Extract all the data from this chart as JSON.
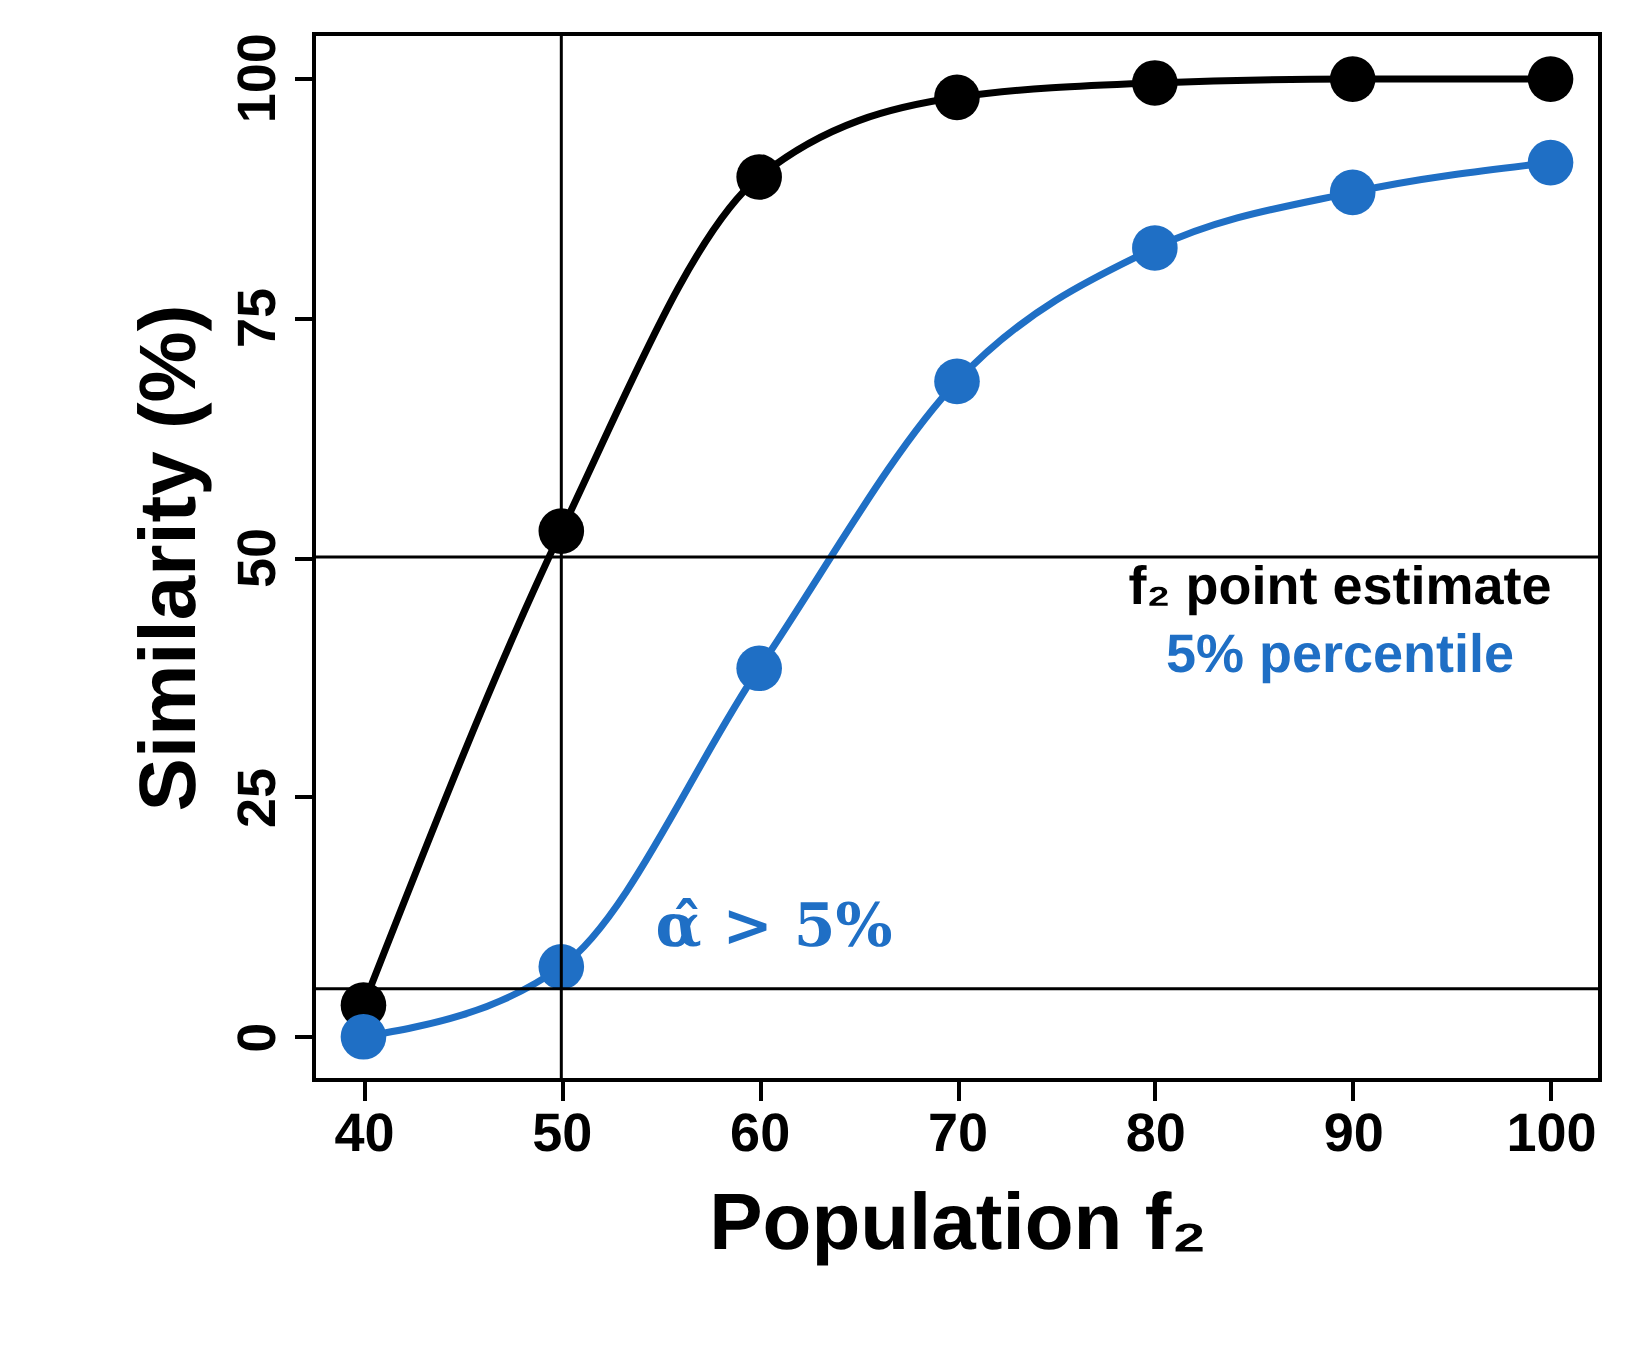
{
  "chart_data": {
    "type": "line",
    "xlabel": "Population f₂",
    "ylabel": "Similarity (%)",
    "x": [
      40,
      50,
      60,
      70,
      80,
      90,
      100
    ],
    "series": [
      {
        "name": "f₂ point estimate",
        "color": "#000000",
        "values": [
          3.3,
          52.7,
          89.6,
          97.9,
          99.4,
          99.8,
          99.8
        ]
      },
      {
        "name": "5% percentile",
        "color": "#1f6fc5",
        "values": [
          0,
          7.3,
          38.4,
          68.3,
          82.2,
          88.0,
          91.1
        ]
      }
    ],
    "xlim": [
      37.5,
      102.5
    ],
    "ylim": [
      -4.5,
      104.5
    ],
    "xticks": [
      40,
      50,
      60,
      70,
      80,
      90,
      100
    ],
    "yticks": [
      0,
      25,
      50,
      75,
      100
    ],
    "ref_lines": [
      {
        "axis": "x",
        "value": 50
      },
      {
        "axis": "y",
        "value": 50
      },
      {
        "axis": "y",
        "value": 5
      }
    ],
    "annotations": [
      "α̂ > 5%"
    ],
    "marker": "circle",
    "legend": "right",
    "grid": false
  }
}
